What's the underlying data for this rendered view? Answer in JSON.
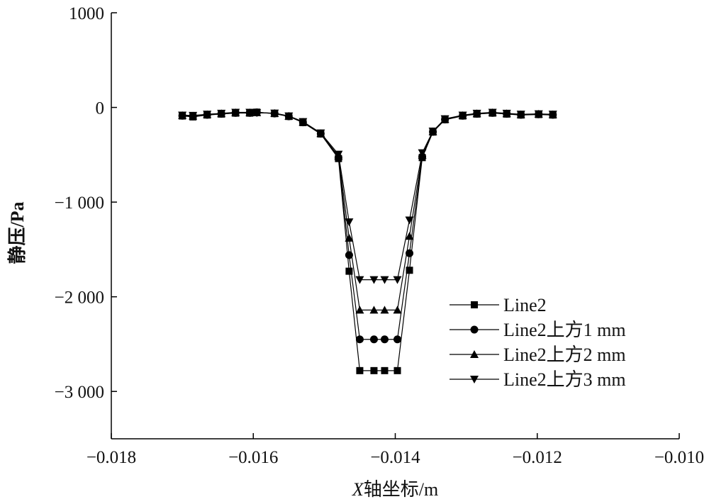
{
  "chart_data": {
    "type": "line",
    "xlabel_var": "X",
    "xlabel_rest": "轴坐标/m",
    "ylabel": "静压/Pa",
    "xlim": [
      -0.018,
      -0.01
    ],
    "ylim": [
      -3500,
      1000
    ],
    "x_ticks": [
      -0.018,
      -0.016,
      -0.014,
      -0.012,
      -0.01
    ],
    "x_tick_labels": [
      "−0.018",
      "−0.016",
      "−0.014",
      "−0.012",
      "−0.010"
    ],
    "y_ticks": [
      1000,
      0,
      -1000,
      -2000,
      -3000
    ],
    "y_tick_labels": [
      "1000",
      "0",
      "−1 000",
      "−2 000",
      "−3 000"
    ],
    "grid": false,
    "legend_position": "right-center",
    "x": [
      -0.017,
      -0.01685,
      -0.01665,
      -0.01645,
      -0.01625,
      -0.01605,
      -0.01595,
      -0.0157,
      -0.0155,
      -0.0153,
      -0.01505,
      -0.0148,
      -0.01465,
      -0.0145,
      -0.0143,
      -0.01415,
      -0.01397,
      -0.0138,
      -0.01362,
      -0.01347,
      -0.0133,
      -0.01305,
      -0.01285,
      -0.01263,
      -0.01243,
      -0.01223,
      -0.01198,
      -0.01178
    ],
    "series": [
      {
        "name": "Line2",
        "marker": "square",
        "values": [
          -90,
          -100,
          -80,
          -70,
          -60,
          -60,
          -50,
          -65,
          -95,
          -160,
          -280,
          -540,
          -1730,
          -2780,
          -2780,
          -2780,
          -2780,
          -1720,
          -530,
          -260,
          -130,
          -90,
          -70,
          -60,
          -70,
          -80,
          -75,
          -80
        ]
      },
      {
        "name": "Line2上方1 mm",
        "marker": "circle",
        "values": [
          -88,
          -95,
          -78,
          -68,
          -58,
          -58,
          -52,
          -64,
          -94,
          -158,
          -278,
          -530,
          -1560,
          -2450,
          -2450,
          -2450,
          -2450,
          -1540,
          -520,
          -258,
          -128,
          -88,
          -68,
          -58,
          -68,
          -78,
          -73,
          -78
        ]
      },
      {
        "name": "Line2上方2 mm",
        "marker": "triangle-up",
        "values": [
          -85,
          -90,
          -75,
          -65,
          -55,
          -55,
          -55,
          -62,
          -92,
          -155,
          -275,
          -515,
          -1380,
          -2140,
          -2140,
          -2140,
          -2140,
          -1360,
          -505,
          -255,
          -125,
          -85,
          -65,
          -55,
          -65,
          -75,
          -70,
          -75
        ]
      },
      {
        "name": "Line2上方3 mm",
        "marker": "triangle-down",
        "values": [
          -82,
          -85,
          -72,
          -62,
          -52,
          -52,
          -58,
          -60,
          -90,
          -150,
          -270,
          -495,
          -1210,
          -1820,
          -1820,
          -1820,
          -1820,
          -1190,
          -480,
          -250,
          -120,
          -82,
          -62,
          -52,
          -62,
          -72,
          -68,
          -72
        ]
      }
    ]
  }
}
